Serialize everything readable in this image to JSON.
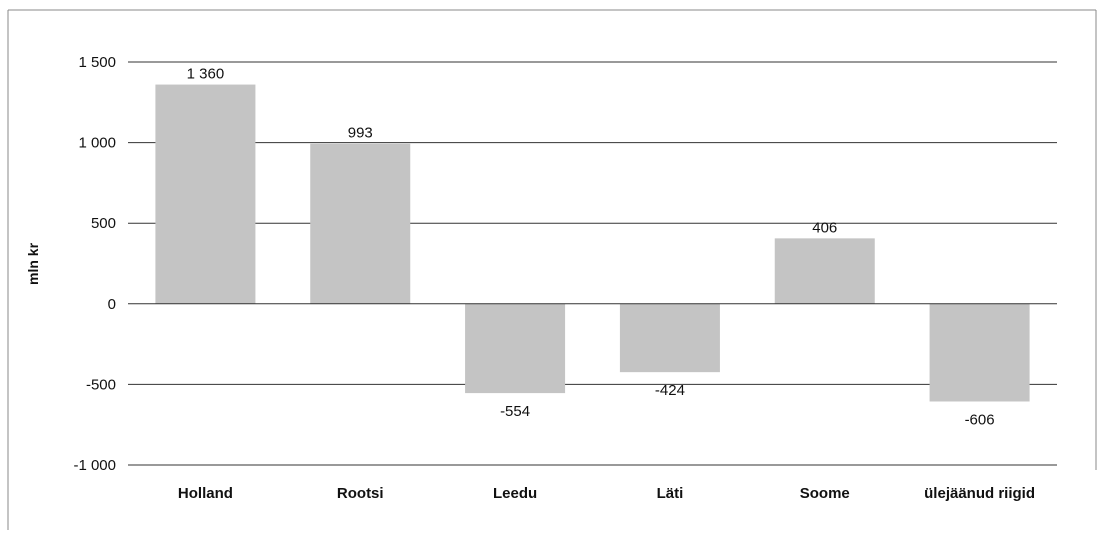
{
  "chart_data": {
    "type": "bar",
    "categories": [
      "Holland",
      "Rootsi",
      "Leedu",
      "Läti",
      "Soome",
      "ülejäänud riigid"
    ],
    "values": [
      1360,
      993,
      -554,
      -424,
      406,
      -606
    ],
    "data_labels": [
      "1 360",
      "993",
      "-554",
      "-424",
      "406",
      "-606"
    ],
    "ylabel": "mln kr",
    "ylim": [
      -1000,
      1500
    ],
    "yticks": [
      1500,
      1000,
      500,
      0,
      -500,
      -1000
    ],
    "ytick_labels": [
      "1 500",
      "1 000",
      "500",
      "0",
      "-500",
      "-1 000"
    ],
    "grid": true,
    "bar_color": "#c4c4c4",
    "grid_color": "#333333"
  }
}
